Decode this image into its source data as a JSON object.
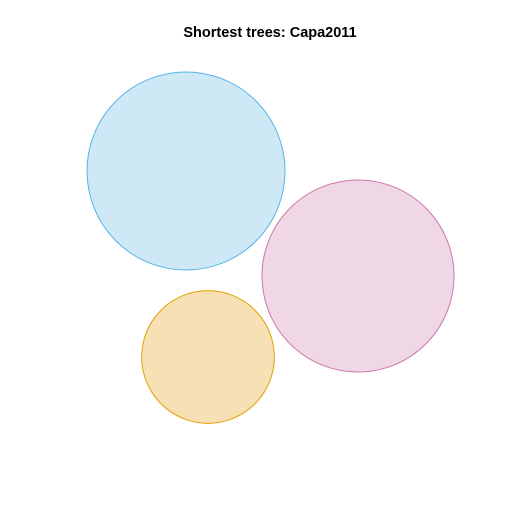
{
  "chart_data": {
    "type": "bubble",
    "title": "Shortest trees: Capa2011",
    "xlabel": "",
    "ylabel": "",
    "grid": false,
    "legend": "none",
    "circles": [
      {
        "color": "#56B4E9",
        "fill": "#CFE8F6",
        "relative_size": 1.0
      },
      {
        "color": "#CC79A7",
        "fill": "#F0D7E5",
        "relative_size": 0.97
      },
      {
        "color": "#E69F00",
        "fill": "#F7E0B3",
        "relative_size": 0.67
      }
    ]
  }
}
